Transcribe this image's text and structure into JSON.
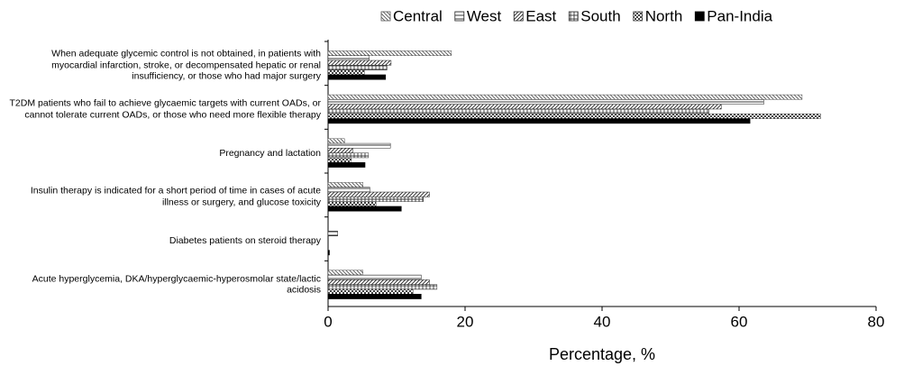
{
  "chart_data": {
    "type": "bar",
    "orientation": "horizontal",
    "xlabel": "Percentage, %",
    "categories": [
      "When adequate glycemic control is not obtained, in patients with myocardial infarction, stroke, or decompensated hepatic or renal insufficiency, or those who had major surgery",
      "T2DM patients who fail to achieve glycaemic targets with current OADs, or cannot tolerate current OADs, or those who need more flexible therapy",
      "Pregnancy and lactation",
      "Insulin therapy is indicated for a short period of time in cases of acute illness or surgery, and glucose toxicity",
      "Diabetes patients on steroid therapy",
      "Acute hyperglycemia, DKA/hyperglycaemic-hyperosmolar state/lactic acidosis"
    ],
    "series": [
      {
        "name": "Central",
        "color": "#555555",
        "pattern": "backward-diagonal",
        "values": [
          18.0,
          69.2,
          2.4,
          5.1,
          0,
          5.1
        ]
      },
      {
        "name": "West",
        "color": "#222222",
        "pattern": "horizontal",
        "values": [
          6.0,
          63.6,
          9.1,
          6.1,
          1.4,
          13.6
        ]
      },
      {
        "name": "East",
        "color": "#222222",
        "pattern": "forward-diagonal",
        "values": [
          9.2,
          57.4,
          3.6,
          14.8,
          0,
          14.8
        ]
      },
      {
        "name": "South",
        "color": "#333333",
        "pattern": "grid",
        "values": [
          8.6,
          55.6,
          5.9,
          13.9,
          0,
          15.9
        ]
      },
      {
        "name": "North",
        "color": "#444444",
        "pattern": "dots",
        "values": [
          5.3,
          71.9,
          3.4,
          7.0,
          0,
          12.4
        ]
      },
      {
        "name": "Pan-India",
        "color": "#000000",
        "pattern": "solid",
        "values": [
          8.4,
          61.6,
          5.4,
          10.7,
          0.2,
          13.6
        ]
      }
    ],
    "xlim": [
      0,
      80
    ],
    "xticks": [
      0,
      20,
      40,
      60,
      80
    ],
    "legend": "top"
  }
}
